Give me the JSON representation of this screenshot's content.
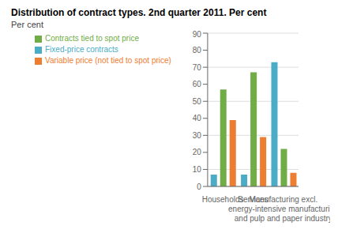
{
  "chart_data": {
    "type": "bar",
    "title": "Distribution of contract types. 2nd quarter 2011. Per cent",
    "y_label": "Per cent",
    "categories": [
      "Households",
      "Services",
      "Manufacturing excl.\nenergy-intensive manufacturing\nand pulp and paper industry"
    ],
    "series": [
      {
        "name": "Fixed-price contracts",
        "color": "#4bacc6",
        "values": [
          7,
          7,
          73
        ]
      },
      {
        "name": "Contracts tied to spot price",
        "color": "#70ad47",
        "values": [
          57,
          67,
          22
        ]
      },
      {
        "name": "Variable price (not tied to spot price)",
        "color": "#ed7d31",
        "values": [
          39,
          29,
          8
        ]
      }
    ],
    "ylim": [
      0,
      90
    ],
    "yticks": [
      0,
      10,
      20,
      30,
      40,
      50,
      60,
      70,
      80,
      90
    ],
    "grid": true,
    "legend": "upper left"
  }
}
